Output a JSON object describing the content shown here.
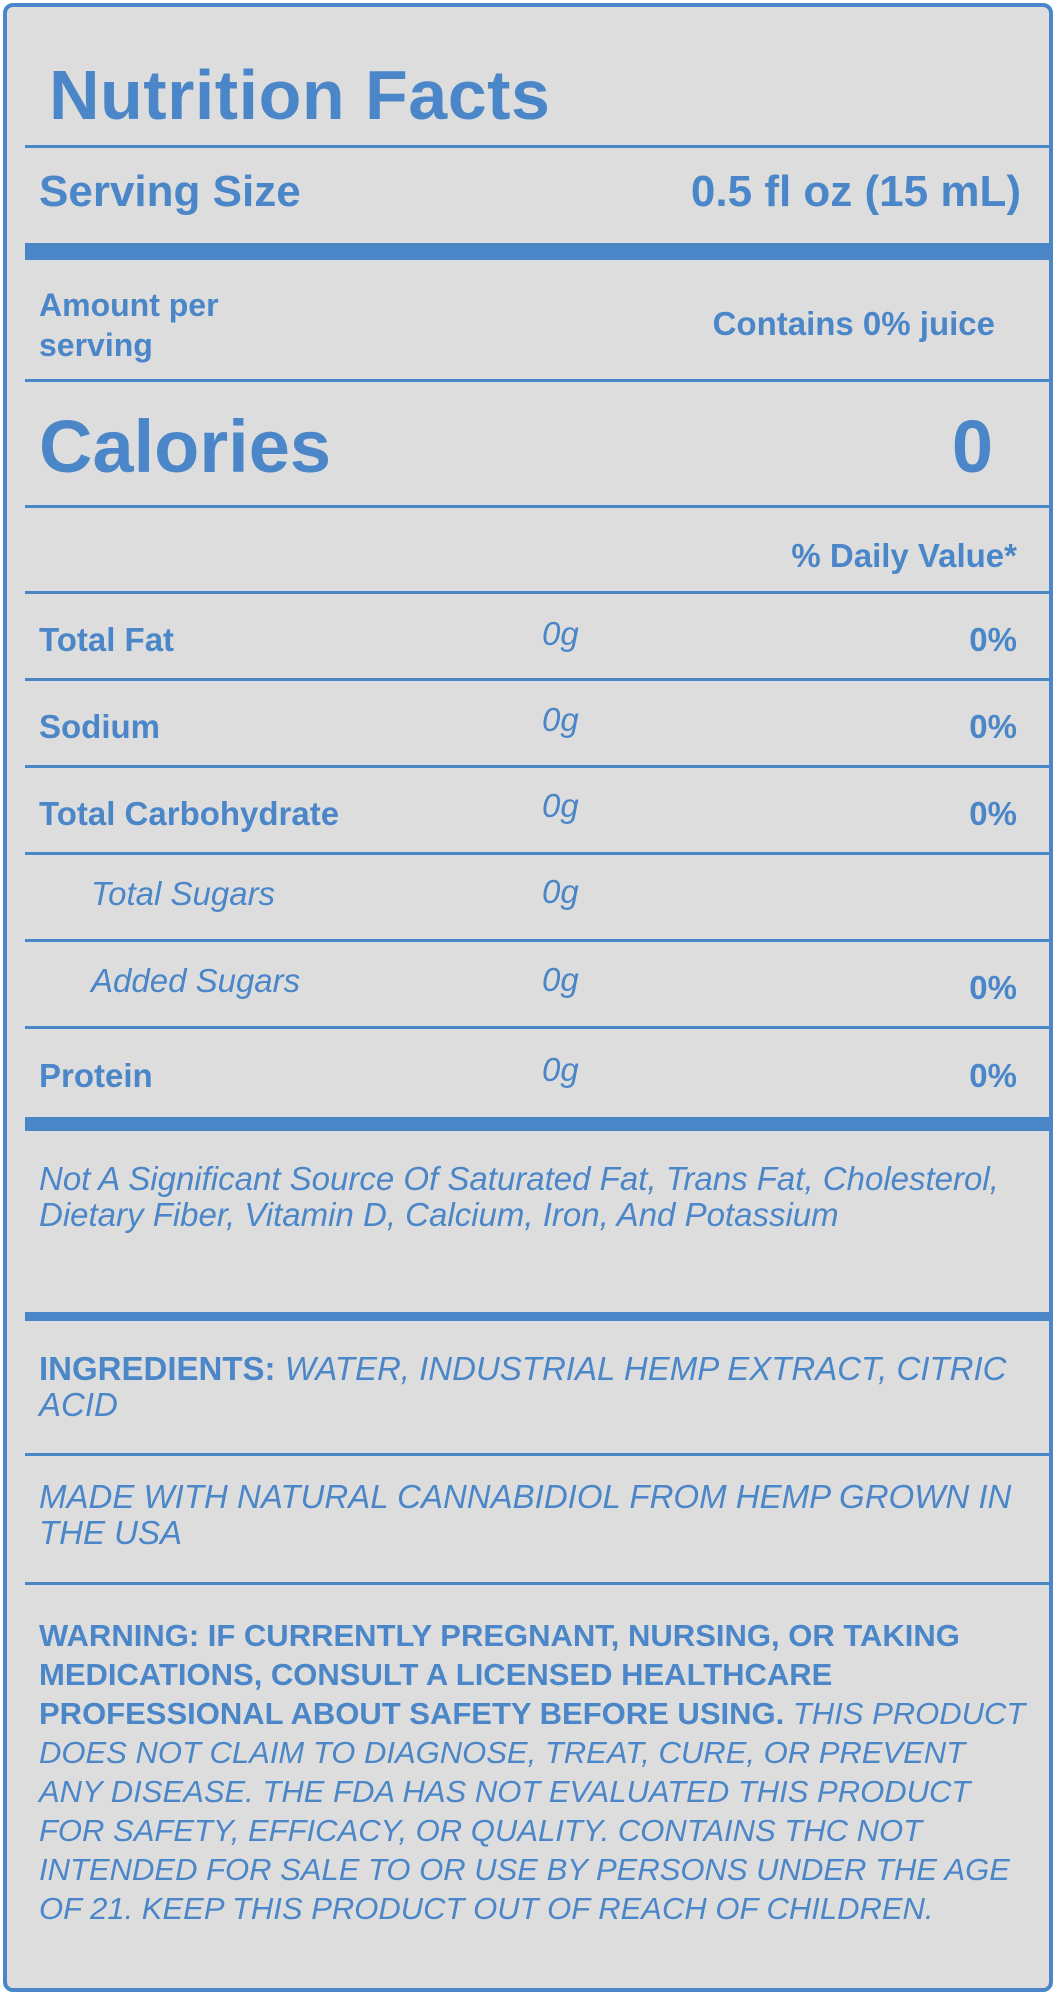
{
  "title": "Nutrition Facts",
  "serving": {
    "label": "Serving Size",
    "value": "0.5 fl oz (15 mL)"
  },
  "amount_per_serving": "Amount per serving",
  "juice_note": "Contains 0% juice",
  "calories": {
    "label": "Calories",
    "value": "0"
  },
  "daily_value_header": "% Daily Value*",
  "nutrients": [
    {
      "name": "Total Fat",
      "amount": "0g",
      "dv": "0%",
      "sub": false
    },
    {
      "name": "Sodium",
      "amount": "0g",
      "dv": "0%",
      "sub": false
    },
    {
      "name": "Total Carbohydrate",
      "amount": "0g",
      "dv": "0%",
      "sub": false
    },
    {
      "name": "Total Sugars",
      "amount": "0g",
      "dv": "",
      "sub": true
    },
    {
      "name": "Added Sugars",
      "amount": "0g",
      "dv": "0%",
      "sub": true
    },
    {
      "name": "Protein",
      "amount": "0g",
      "dv": "0%",
      "sub": false
    }
  ],
  "not_significant": "Not A Significant Source Of Saturated Fat, Trans Fat, Cholesterol, Dietary Fiber, Vitamin D, Calcium, Iron, And Potassium",
  "ingredients": {
    "label": "INGREDIENTS:",
    "text": "WATER, INDUSTRIAL HEMP EXTRACT, CITRIC ACID"
  },
  "origin_note": "MADE WITH NATURAL CANNABIDIOL FROM HEMP GROWN IN THE USA",
  "warning": {
    "bold_text": "WARNING: IF CURRENTLY PREGNANT, NURSING, OR TAKING MEDICATIONS, CONSULT A LICENSED HEALTHCARE PROFESSIONAL ABOUT SAFETY BEFORE USING.",
    "italic_text": "THIS PRODUCT DOES NOT CLAIM TO DIAGNOSE, TREAT, CURE, OR PREVENT ANY DISEASE. THE FDA HAS NOT EVALUATED THIS PRODUCT FOR SAFETY, EFFICACY, OR QUALITY. CONTAINS THC NOT INTENDED FOR SALE TO OR USE BY PERSONS UNDER THE AGE OF 21. KEEP THIS PRODUCT OUT OF REACH OF CHILDREN."
  },
  "colors": {
    "accent": "#4a86c8",
    "background": "#dddddd"
  }
}
